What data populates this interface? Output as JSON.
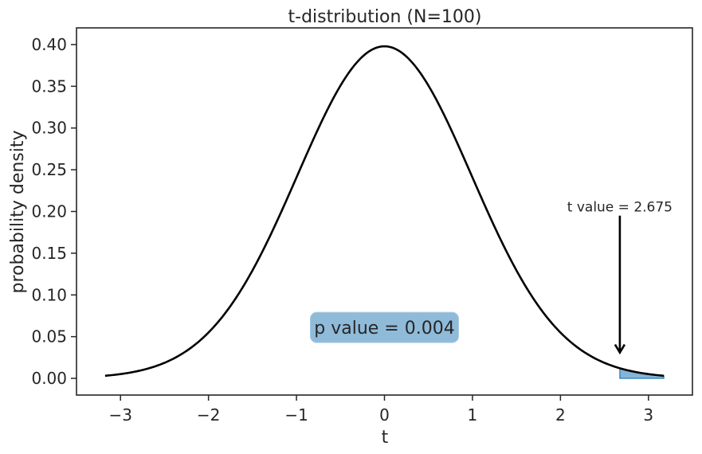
{
  "chart_data": {
    "type": "line",
    "title": "t-distribution (N=100)",
    "xlabel": "t",
    "ylabel": "probability density",
    "xlim": [
      -3.5,
      3.5
    ],
    "ylim": [
      -0.02,
      0.42
    ],
    "x_ticks": [
      -3,
      -2,
      -1,
      0,
      1,
      2,
      3
    ],
    "x_tick_labels": [
      "−3",
      "−2",
      "−1",
      "0",
      "1",
      "2",
      "3"
    ],
    "y_ticks": [
      0.0,
      0.05,
      0.1,
      0.15,
      0.2,
      0.25,
      0.3,
      0.35,
      0.4
    ],
    "y_tick_labels": [
      "0.00",
      "0.05",
      "0.10",
      "0.15",
      "0.20",
      "0.25",
      "0.30",
      "0.35",
      "0.40"
    ],
    "grid": false,
    "curve": {
      "distribution": "student-t",
      "degrees_of_freedom": 99,
      "x_range": [
        -3.175,
        3.175
      ],
      "color": "#000000"
    },
    "shaded_region": {
      "x_from": 2.675,
      "x_to": 3.175,
      "color": "#1f77b4"
    },
    "annotations": {
      "t_value_label": "t value = 2.675",
      "t_value": 2.675,
      "arrow_from_y": 0.195,
      "arrow_to_y": 0.031,
      "label_y": 0.2,
      "p_value_label": "p value = 0.004",
      "p_value_box_x": 0.0,
      "p_value_box_y": 0.061,
      "p_value_box_color": "#8fbbd9"
    }
  }
}
